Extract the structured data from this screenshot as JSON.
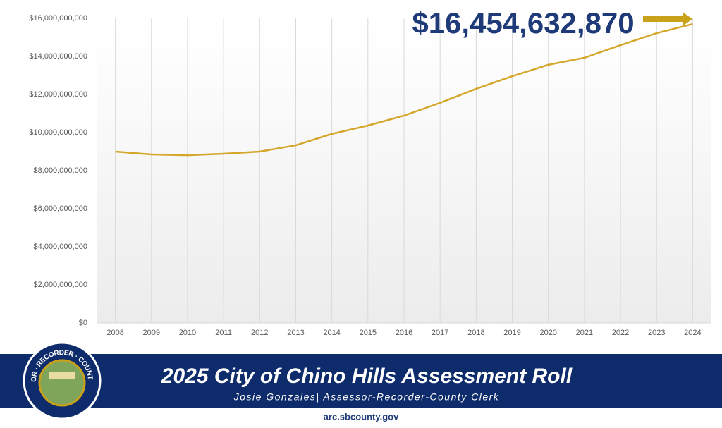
{
  "chart_data": {
    "type": "line",
    "categories": [
      "2008",
      "2009",
      "2010",
      "2011",
      "2012",
      "2013",
      "2014",
      "2015",
      "2016",
      "2017",
      "2018",
      "2019",
      "2020",
      "2021",
      "2022",
      "2023",
      "2024"
    ],
    "series": [
      {
        "name": "Assessment Roll",
        "color": "#d4a62a",
        "values": [
          9000000000,
          8850000000,
          8810000000,
          8890000000,
          9000000000,
          9330000000,
          9930000000,
          10370000000,
          10890000000,
          11560000000,
          12300000000,
          12960000000,
          13560000000,
          13930000000,
          14590000000,
          15220000000,
          15700000000
        ]
      }
    ],
    "ylim": [
      0,
      16000000000
    ],
    "yticks": [
      {
        "value": 0,
        "label": "$0"
      },
      {
        "value": 2000000000,
        "label": "$2,000,000,000"
      },
      {
        "value": 4000000000,
        "label": "$4,000,000,000"
      },
      {
        "value": 6000000000,
        "label": "$6,000,000,000"
      },
      {
        "value": 8000000000,
        "label": "$8,000,000,000"
      },
      {
        "value": 10000000000,
        "label": "$10,000,000,000"
      },
      {
        "value": 12000000000,
        "label": "$12,000,000,000"
      },
      {
        "value": 14000000000,
        "label": "$14,000,000,000"
      },
      {
        "value": 16000000000,
        "label": "$16,000,000,000"
      }
    ],
    "grid": true,
    "annotation": "$16,454,632,870"
  },
  "footer": {
    "title": "2025 City of Chino Hills Assessment Roll",
    "subtitle": "Josie Gonzales| Assessor-Recorder-County Clerk",
    "url": "arc.sbcounty.gov",
    "seal": "ASSESSOR · RECORDER · COUNTY CLERK"
  }
}
